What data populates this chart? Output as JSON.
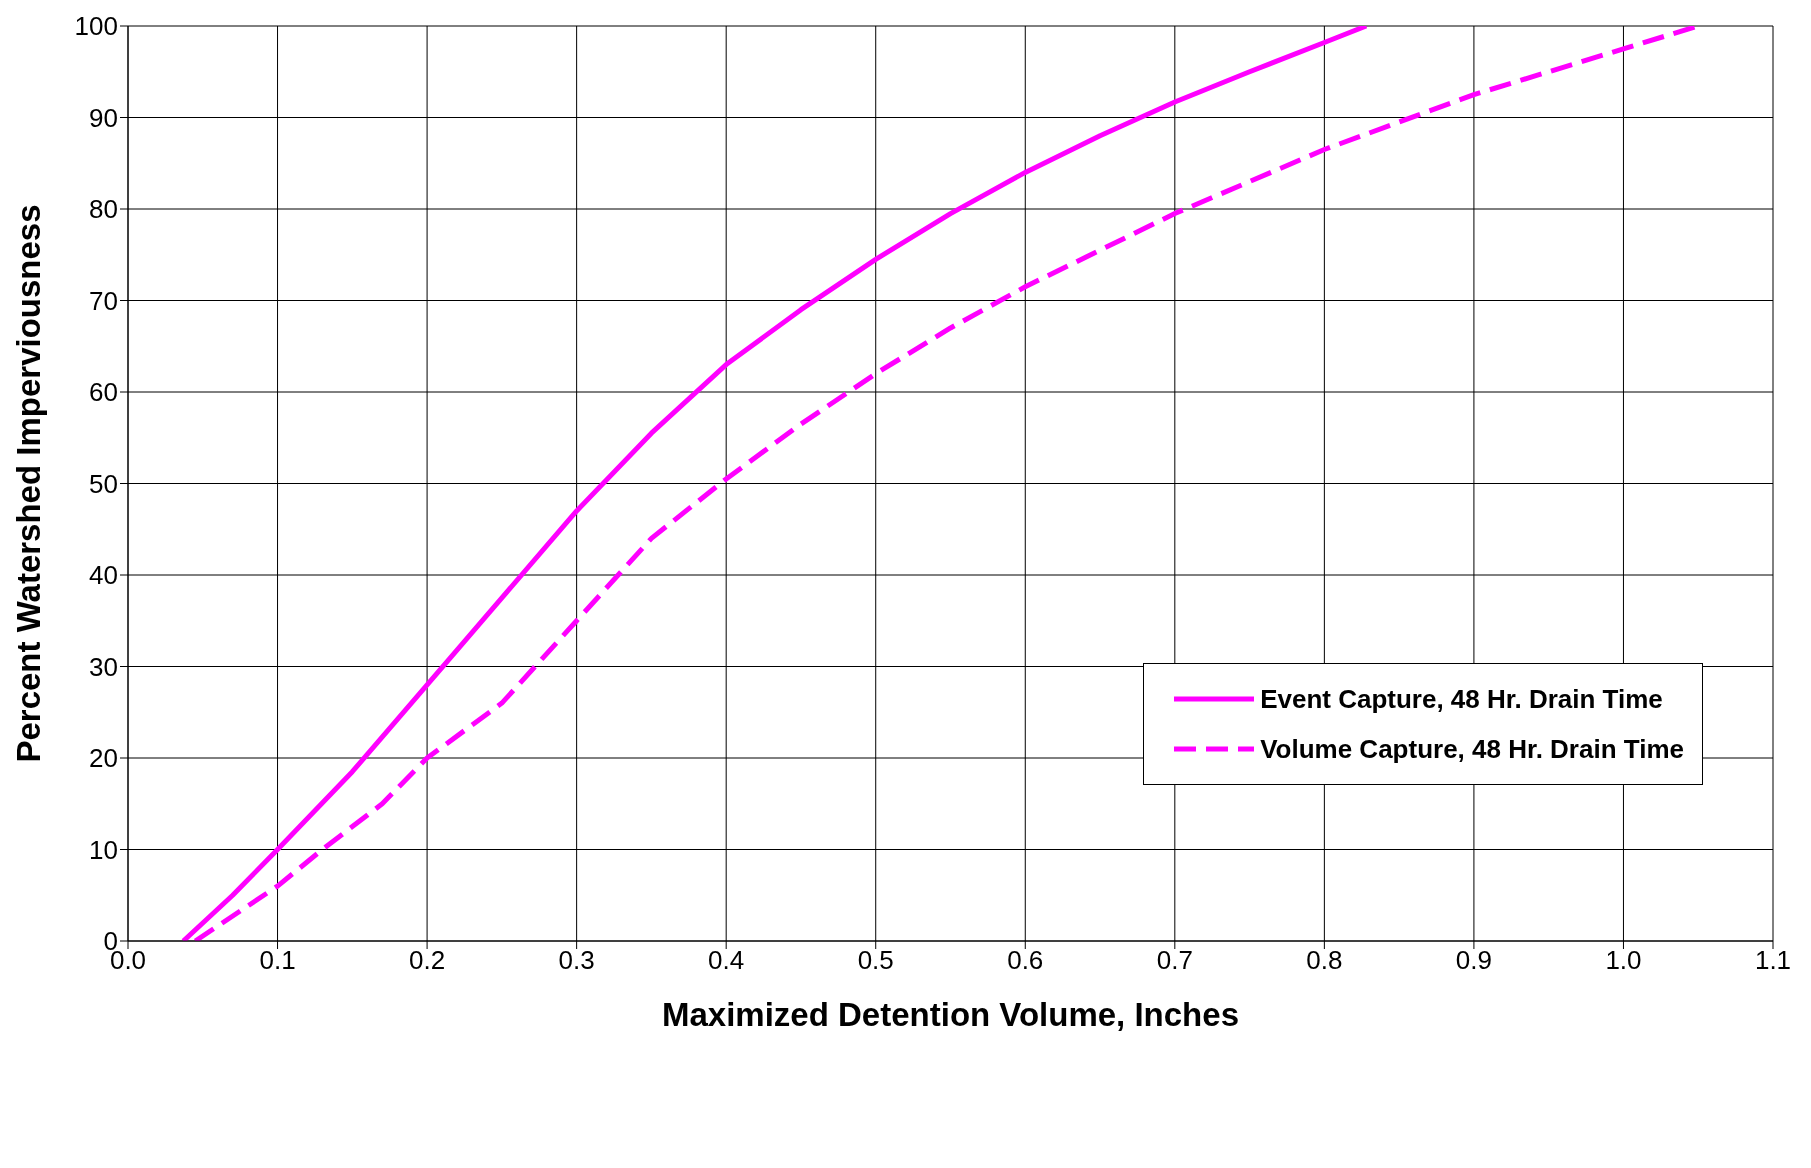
{
  "chart_data": {
    "type": "line",
    "xlabel": "Maximized Detention Volume, Inches",
    "ylabel": "Percent Watershed Imperviousness",
    "xlim": [
      0,
      1.1
    ],
    "xticks": [
      {
        "value": 0,
        "label": "0.0"
      },
      0.1,
      0.2,
      0.3,
      0.4,
      0.5,
      0.6,
      0.7,
      0.8,
      0.9,
      {
        "value": 1,
        "label": "1.0"
      },
      1.1
    ],
    "ylim": [
      0,
      100
    ],
    "yticks": [
      0,
      10,
      20,
      30,
      40,
      50,
      60,
      70,
      80,
      90,
      100
    ],
    "grid": true,
    "legend": "center right",
    "marker": "none",
    "series": [
      {
        "name": "Event Capture, 48 Hr. Drain Time",
        "color": "#ff00ff",
        "line_style": "solid",
        "x": [
          0.037,
          0.07,
          0.1,
          0.15,
          0.2,
          0.25,
          0.3,
          0.35,
          0.4,
          0.45,
          0.5,
          0.55,
          0.6,
          0.65,
          0.7,
          0.75,
          0.8,
          0.828
        ],
        "values": [
          0,
          5,
          10,
          18.5,
          28,
          37.5,
          47,
          55.5,
          63,
          69,
          74.5,
          79.5,
          84,
          88,
          91.7,
          95,
          98.2,
          100
        ]
      },
      {
        "name": "Volume Capture, 48 Hr. Drain Time",
        "color": "#ff00ff",
        "line_style": "dashed",
        "x": [
          0.045,
          0.1,
          0.13,
          0.17,
          0.2,
          0.25,
          0.3,
          0.35,
          0.4,
          0.45,
          0.5,
          0.55,
          0.6,
          0.65,
          0.7,
          0.75,
          0.8,
          0.85,
          0.9,
          0.95,
          1.0,
          1.05
        ],
        "values": [
          0,
          6,
          10,
          15,
          20,
          26,
          35,
          44,
          50.5,
          56.5,
          62,
          67,
          71.5,
          75.5,
          79.5,
          83,
          86.5,
          89.5,
          92.5,
          95,
          97.5,
          100
        ]
      }
    ]
  }
}
